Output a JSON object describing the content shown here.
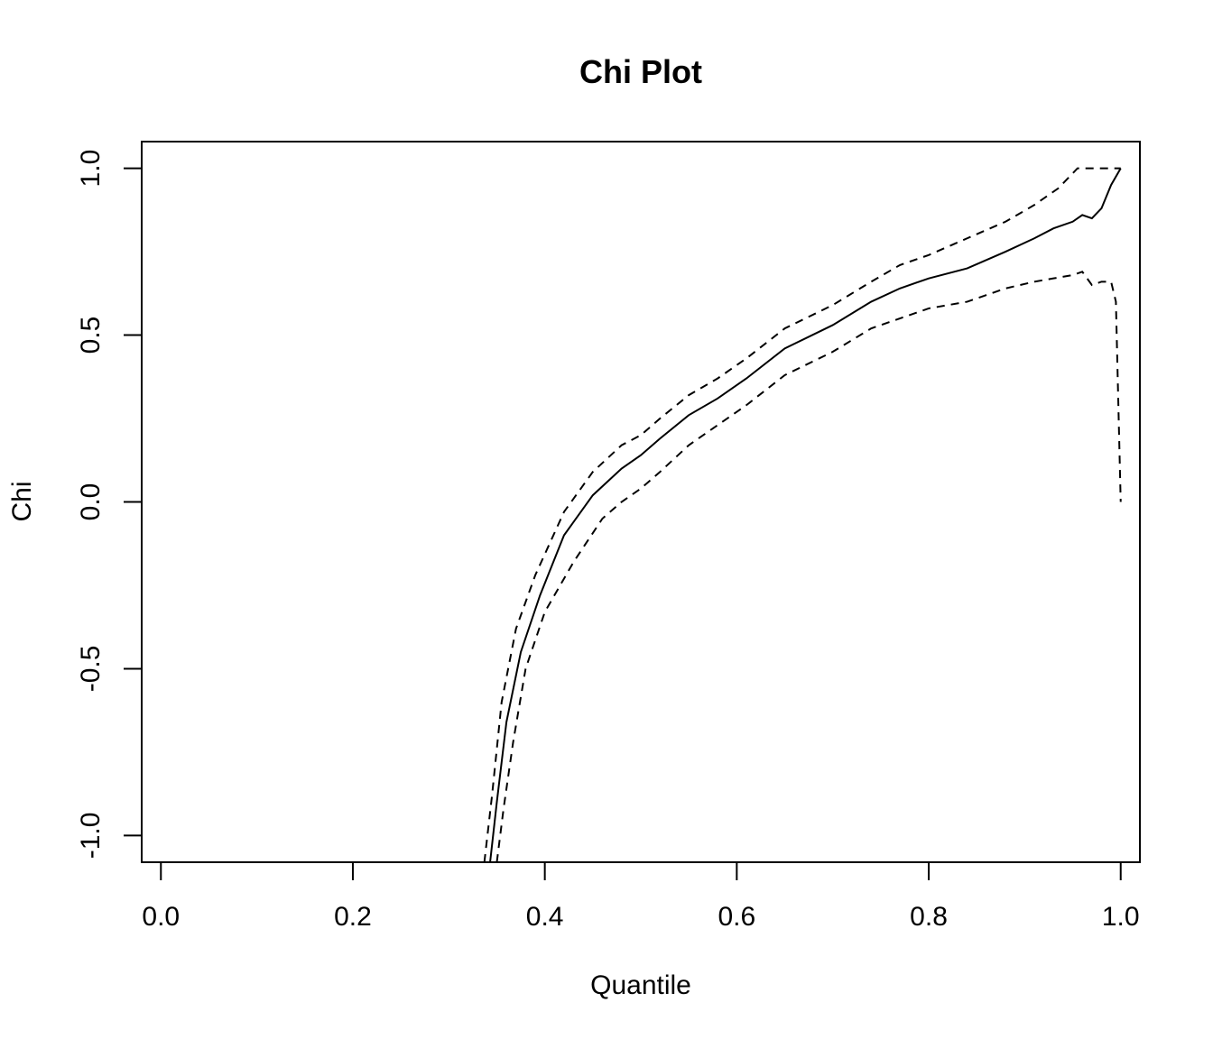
{
  "chart_data": {
    "type": "line",
    "title": "Chi Plot",
    "xlabel": "Quantile",
    "ylabel": "Chi",
    "xlim": [
      -0.02,
      1.02
    ],
    "ylim": [
      -1.08,
      1.08
    ],
    "x_ticks": [
      0.0,
      0.2,
      0.4,
      0.6,
      0.8,
      1.0
    ],
    "x_tick_labels": [
      "0.0",
      "0.2",
      "0.4",
      "0.6",
      "0.8",
      "1.0"
    ],
    "y_ticks": [
      -1.0,
      -0.5,
      0.0,
      0.5,
      1.0
    ],
    "y_tick_labels": [
      "-1.0",
      "-0.5",
      "0.0",
      "0.5",
      "1.0"
    ],
    "grid": false,
    "legend": "none",
    "series": [
      {
        "style": "dashed",
        "x": [
          0.337,
          0.345,
          0.355,
          0.37,
          0.39,
          0.42,
          0.45,
          0.48,
          0.5,
          0.52,
          0.55,
          0.58,
          0.61,
          0.65,
          0.7,
          0.74,
          0.77,
          0.8,
          0.84,
          0.88,
          0.91,
          0.935,
          0.955,
          0.975,
          1.0
        ],
        "y": [
          -1.08,
          -0.88,
          -0.6,
          -0.38,
          -0.22,
          -0.03,
          0.09,
          0.17,
          0.2,
          0.25,
          0.32,
          0.37,
          0.43,
          0.52,
          0.59,
          0.66,
          0.71,
          0.74,
          0.79,
          0.84,
          0.89,
          0.94,
          1.0,
          1.0,
          1.0
        ]
      },
      {
        "style": "solid",
        "x": [
          0.343,
          0.35,
          0.36,
          0.375,
          0.395,
          0.42,
          0.45,
          0.48,
          0.5,
          0.52,
          0.55,
          0.58,
          0.61,
          0.65,
          0.7,
          0.74,
          0.77,
          0.8,
          0.84,
          0.88,
          0.91,
          0.93,
          0.95,
          0.96,
          0.97,
          0.98,
          0.99,
          1.0
        ],
        "y": [
          -1.08,
          -0.9,
          -0.66,
          -0.45,
          -0.28,
          -0.1,
          0.02,
          0.1,
          0.14,
          0.19,
          0.26,
          0.31,
          0.37,
          0.46,
          0.53,
          0.6,
          0.64,
          0.67,
          0.7,
          0.75,
          0.79,
          0.82,
          0.84,
          0.86,
          0.85,
          0.88,
          0.95,
          1.0
        ]
      },
      {
        "style": "dashed",
        "x": [
          0.35,
          0.357,
          0.367,
          0.38,
          0.4,
          0.43,
          0.46,
          0.48,
          0.5,
          0.52,
          0.55,
          0.58,
          0.61,
          0.65,
          0.7,
          0.74,
          0.77,
          0.8,
          0.84,
          0.88,
          0.91,
          0.93,
          0.95,
          0.96,
          0.97,
          0.98,
          0.99,
          0.995,
          1.0
        ],
        "y": [
          -1.08,
          -0.92,
          -0.72,
          -0.5,
          -0.33,
          -0.18,
          -0.05,
          0.0,
          0.04,
          0.09,
          0.17,
          0.23,
          0.29,
          0.38,
          0.45,
          0.52,
          0.55,
          0.58,
          0.6,
          0.64,
          0.66,
          0.67,
          0.68,
          0.69,
          0.65,
          0.66,
          0.66,
          0.6,
          0.0
        ]
      }
    ]
  }
}
